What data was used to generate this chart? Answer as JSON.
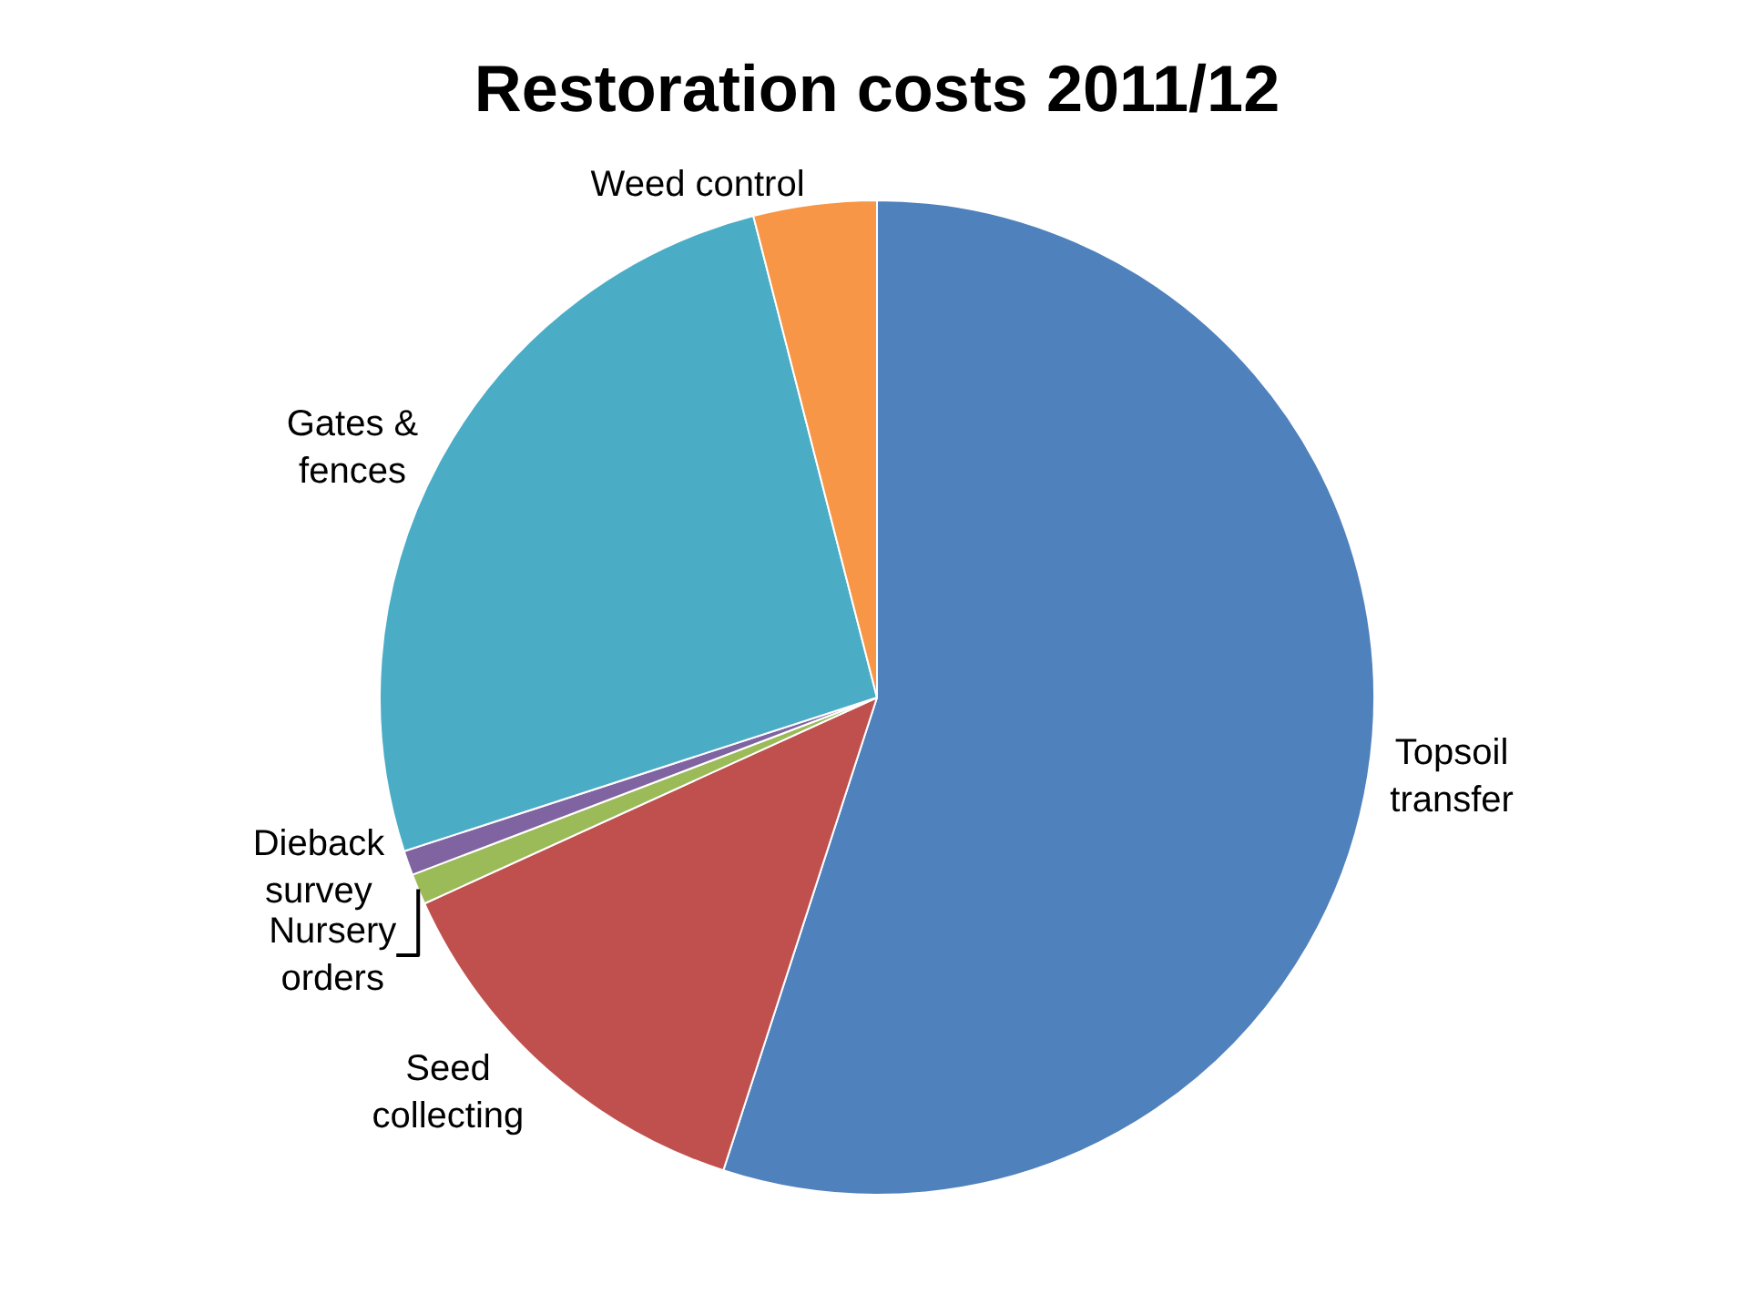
{
  "chart_data": {
    "type": "pie",
    "title": "Restoration costs 2011/12",
    "categories": [
      "Topsoil\ntransfer",
      "Seed\ncollecting",
      "Nursery\norders",
      "Dieback\nsurvey",
      "Gates &\nfences",
      "Weed control"
    ],
    "values": [
      55.0,
      13.2,
      1.0,
      0.8,
      26.0,
      4.0
    ],
    "colors": [
      "#4f81bd",
      "#c0504d",
      "#9bbb59",
      "#8064a2",
      "#4bacc6",
      "#f79646"
    ],
    "legend": false
  }
}
